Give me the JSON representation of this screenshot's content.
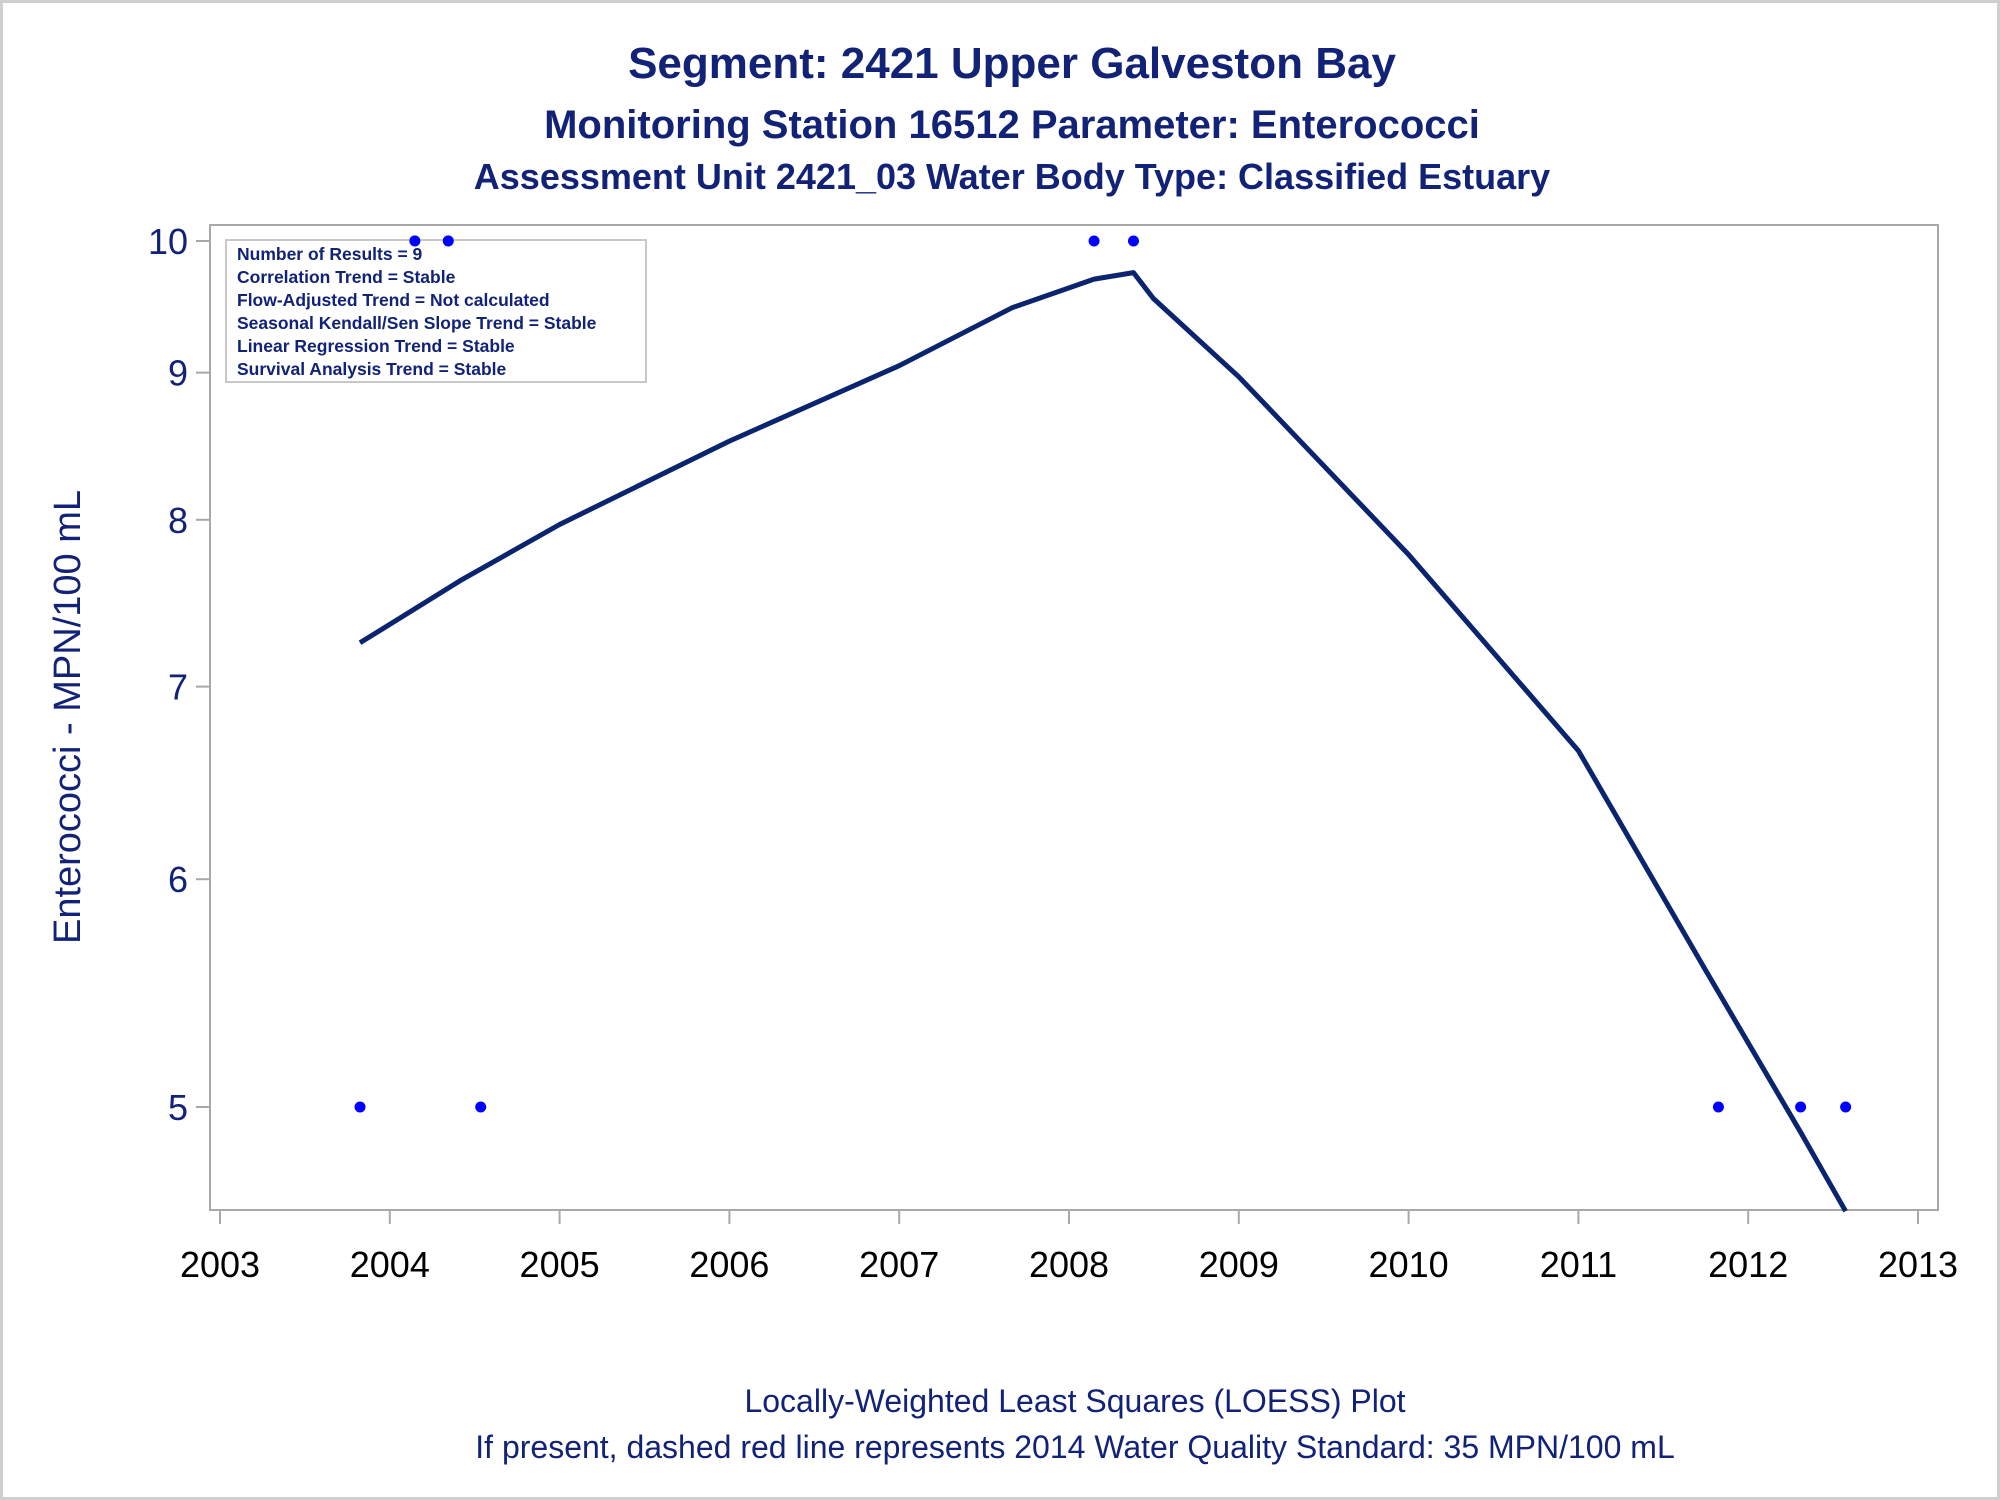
{
  "colors": {
    "title": "#112277",
    "axis_frame": "#a8a8a8",
    "curve": "#0b2470",
    "points": "#0000ff",
    "stats_border": "#c8c8c8",
    "x_tick_labels": "#000000"
  },
  "chart_data": {
    "type": "scatter",
    "title": "Segment: 2421  Upper Galveston Bay",
    "subtitle": "Monitoring Station 16512 Parameter: Enterococci",
    "subtitle2": "Assessment Unit 2421_03   Water Body Type: Classified Estuary",
    "xlabel": "",
    "ylabel": "Enterococci - MPN/100 mL",
    "y_scale": "log",
    "xlim": [
      "2003-01-01",
      "2013-01-01"
    ],
    "ylim": [
      4.55,
      10.15
    ],
    "x_ticks": [
      "2003",
      "2004",
      "2005",
      "2006",
      "2007",
      "2008",
      "2009",
      "2010",
      "2011",
      "2012",
      "2013"
    ],
    "y_ticks": [
      5,
      6,
      7,
      8,
      9,
      10
    ],
    "grid": false,
    "points": [
      {
        "date": "2003-10-29",
        "value": 5
      },
      {
        "date": "2004-02-24",
        "value": 10
      },
      {
        "date": "2004-05-06",
        "value": 10
      },
      {
        "date": "2004-07-15",
        "value": 5
      },
      {
        "date": "2008-02-24",
        "value": 10
      },
      {
        "date": "2008-05-19",
        "value": 10
      },
      {
        "date": "2011-10-29",
        "value": 5
      },
      {
        "date": "2012-04-23",
        "value": 5
      },
      {
        "date": "2012-07-29",
        "value": 5
      }
    ],
    "loess": [
      {
        "date": "2003-10-29",
        "value": 7.25
      },
      {
        "date": "2004-06-01",
        "value": 7.62
      },
      {
        "date": "2005-01-01",
        "value": 7.97
      },
      {
        "date": "2006-01-01",
        "value": 8.52
      },
      {
        "date": "2007-01-01",
        "value": 9.05
      },
      {
        "date": "2007-09-01",
        "value": 9.48
      },
      {
        "date": "2008-02-24",
        "value": 9.7
      },
      {
        "date": "2008-05-19",
        "value": 9.75
      },
      {
        "date": "2008-07-01",
        "value": 9.55
      },
      {
        "date": "2009-01-01",
        "value": 8.97
      },
      {
        "date": "2010-01-01",
        "value": 7.78
      },
      {
        "date": "2011-01-01",
        "value": 6.65
      },
      {
        "date": "2011-10-01",
        "value": 5.58
      },
      {
        "date": "2012-04-23",
        "value": 4.9
      },
      {
        "date": "2012-07-29",
        "value": 4.6
      }
    ],
    "stats_box": [
      "Number of Results = 9",
      "Correlation Trend = Stable",
      "Flow-Adjusted Trend = Not calculated",
      "Seasonal Kendall/Sen Slope Trend = Stable",
      "Linear Regression Trend = Stable",
      "Survival Analysis Trend = Stable"
    ],
    "stats_box_placement": "top-left",
    "footnotes": [
      "Locally-Weighted Least Squares (LOESS) Plot",
      "If present, dashed red line represents 2014 Water Quality Standard: 35 MPN/100 mL"
    ]
  }
}
